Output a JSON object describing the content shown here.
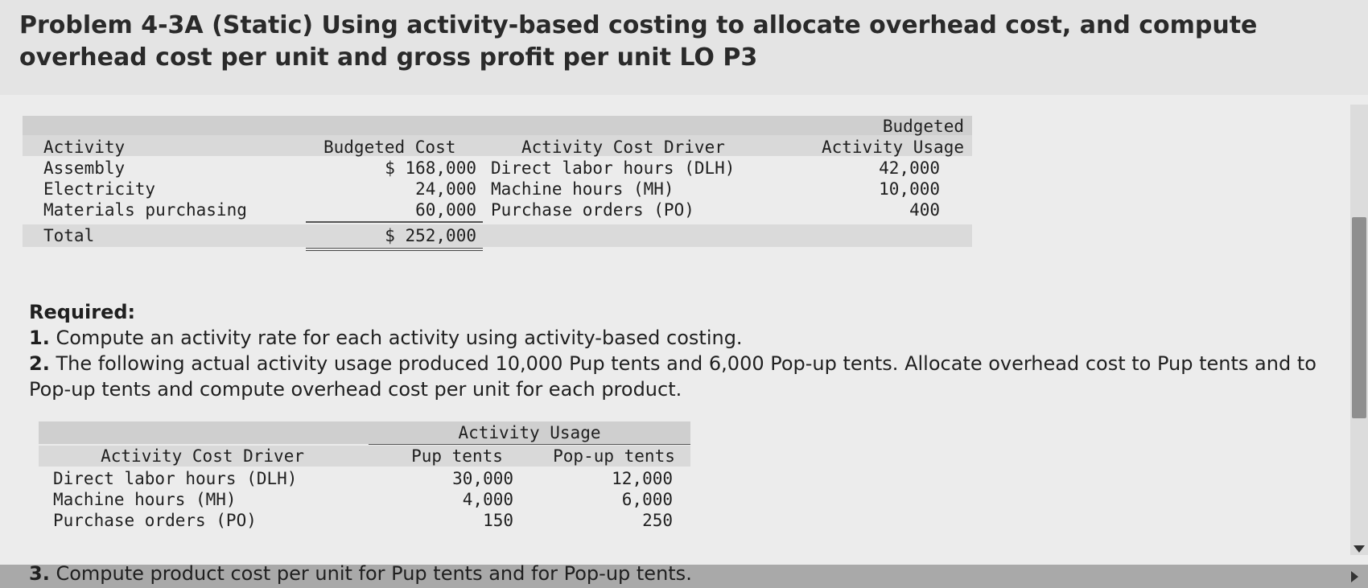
{
  "title": "Problem 4-3A (Static) Using activity-based costing to allocate overhead cost, and compute overhead cost per unit and gross profit per unit LO P3",
  "table1": {
    "headers": {
      "activity": "Activity",
      "budgeted_cost": "Budgeted Cost",
      "driver": "Activity Cost Driver",
      "usage_line1": "Budgeted",
      "usage_line2": "Activity Usage"
    },
    "rows": [
      {
        "activity": "Assembly",
        "cost": "$ 168,000",
        "driver": "Direct labor hours (DLH)",
        "usage": "42,000"
      },
      {
        "activity": "Electricity",
        "cost": "24,000",
        "driver": "Machine hours (MH)",
        "usage": "10,000"
      },
      {
        "activity": "Materials purchasing",
        "cost": "60,000",
        "driver": "Purchase orders (PO)",
        "usage": "400"
      }
    ],
    "total": {
      "label": "Total",
      "cost": "$ 252,000"
    }
  },
  "required": {
    "label": "Required:",
    "items": [
      {
        "num": "1.",
        "text": "Compute an activity rate for each activity using activity-based costing."
      },
      {
        "num": "2.",
        "text": "The following actual activity usage produced 10,000 Pup tents and 6,000 Pop-up tents. Allocate overhead cost to Pup tents and to Pop-up tents and compute overhead cost per unit for each product."
      }
    ],
    "item3": {
      "num": "3.",
      "text": "Compute product cost per unit for Pup tents and for Pop-up tents."
    }
  },
  "table2": {
    "group_header": "Activity Usage",
    "headers": {
      "driver": "Activity Cost Driver",
      "pup": "Pup tents",
      "popup": "Pop-up tents"
    },
    "rows": [
      {
        "driver": "Direct labor hours (DLH)",
        "pup": "30,000",
        "popup": "12,000"
      },
      {
        "driver": "Machine hours (MH)",
        "pup": "4,000",
        "popup": "6,000"
      },
      {
        "driver": "Purchase orders (PO)",
        "pup": "150",
        "popup": "250"
      }
    ]
  }
}
